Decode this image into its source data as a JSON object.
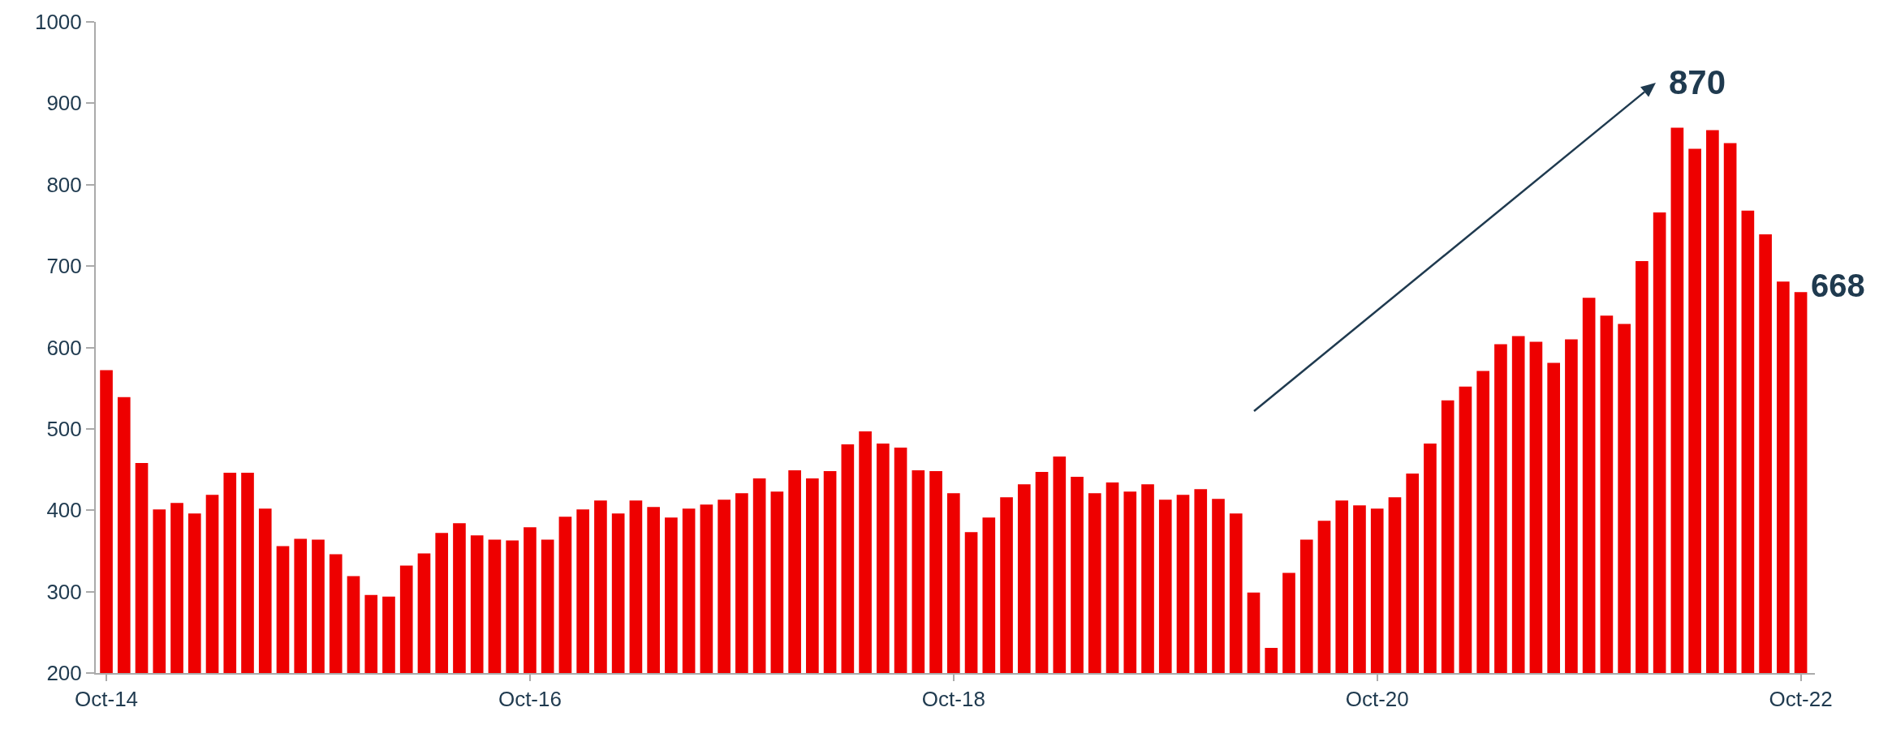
{
  "chart_data": {
    "type": "bar",
    "categories": [
      "Oct-14",
      null,
      null,
      null,
      null,
      null,
      null,
      null,
      null,
      null,
      null,
      null,
      null,
      null,
      null,
      null,
      null,
      null,
      null,
      null,
      null,
      null,
      null,
      null,
      "Oct-16",
      null,
      null,
      null,
      null,
      null,
      null,
      null,
      null,
      null,
      null,
      null,
      null,
      null,
      null,
      null,
      null,
      null,
      null,
      null,
      null,
      null,
      null,
      null,
      "Oct-18",
      null,
      null,
      null,
      null,
      null,
      null,
      null,
      null,
      null,
      null,
      null,
      null,
      null,
      null,
      null,
      null,
      null,
      null,
      null,
      null,
      null,
      null,
      null,
      "Oct-20",
      null,
      null,
      null,
      null,
      null,
      null,
      null,
      null,
      null,
      null,
      null,
      null,
      null,
      null,
      null,
      null,
      null,
      null,
      null,
      null,
      null,
      null,
      null,
      "Oct-22"
    ],
    "values": [
      572,
      539,
      458,
      401,
      409,
      396,
      419,
      446,
      446,
      402,
      356,
      365,
      364,
      346,
      319,
      296,
      294,
      332,
      347,
      372,
      384,
      369,
      364,
      363,
      379,
      364,
      392,
      401,
      412,
      396,
      412,
      404,
      391,
      402,
      407,
      413,
      421,
      439,
      423,
      449,
      439,
      448,
      481,
      497,
      482,
      477,
      449,
      448,
      421,
      373,
      391,
      416,
      432,
      447,
      466,
      441,
      421,
      434,
      423,
      432,
      413,
      419,
      426,
      414,
      396,
      299,
      231,
      323,
      364,
      387,
      412,
      406,
      402,
      416,
      445,
      482,
      535,
      552,
      571,
      604,
      614,
      607,
      581,
      610,
      661,
      639,
      629,
      706,
      766,
      870,
      844,
      867,
      851,
      768,
      739,
      681,
      668
    ],
    "color": "#ee0000",
    "ylim": [
      200,
      1000
    ],
    "yticks": [
      200,
      300,
      400,
      500,
      600,
      700,
      800,
      900,
      1000
    ],
    "grid": false,
    "annotations": [
      "870",
      {
        "text": "668",
        "x": "Oct-22",
        "y": 668
      }
    ]
  }
}
